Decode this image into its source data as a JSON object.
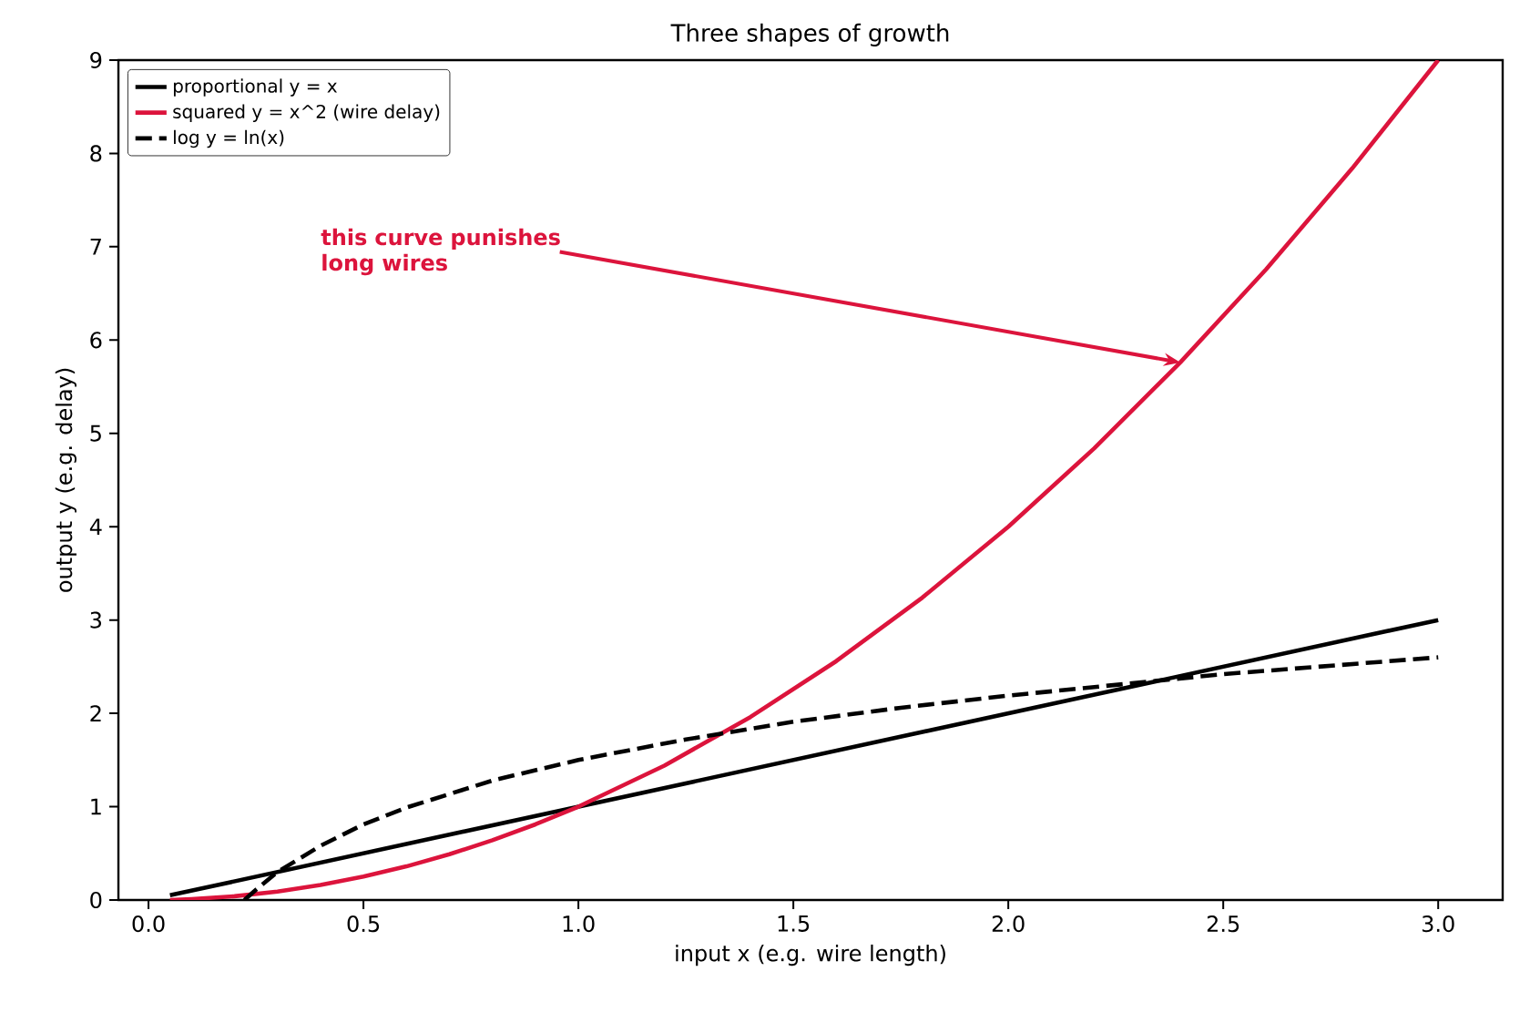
{
  "chart_data": {
    "type": "line",
    "title": "Three shapes of growth",
    "xlabel": "input  x  (e.g. wire length)",
    "ylabel": "output  y  (e.g. delay)",
    "xlim": [
      -0.07,
      3.15
    ],
    "ylim": [
      0,
      9
    ],
    "xticks": [
      {
        "value": 0.0,
        "label": "0.0"
      },
      {
        "value": 0.5,
        "label": "0.5"
      },
      {
        "value": 1.0,
        "label": "1.0"
      },
      {
        "value": 1.5,
        "label": "1.5"
      },
      {
        "value": 2.0,
        "label": "2.0"
      },
      {
        "value": 2.5,
        "label": "2.5"
      },
      {
        "value": 3.0,
        "label": "3.0"
      }
    ],
    "yticks": [
      0,
      1,
      2,
      3,
      4,
      5,
      6,
      7,
      8,
      9
    ],
    "grid": false,
    "legend": "top left",
    "marker": "none",
    "series": [
      {
        "name": "proportional  y = x",
        "color": "#000000",
        "line_style": "solid",
        "x": [
          0.05,
          3.0
        ],
        "values": [
          0.05,
          3.0
        ]
      },
      {
        "name": "squared  y = x^2  (wire delay)",
        "color": "#dc143c",
        "line_style": "solid",
        "x": [
          0.05,
          0.1,
          0.2,
          0.3,
          0.4,
          0.5,
          0.6,
          0.7,
          0.8,
          0.9,
          1.0,
          1.2,
          1.4,
          1.6,
          1.8,
          2.0,
          2.2,
          2.4,
          2.6,
          2.8,
          3.0
        ],
        "values": [
          0.0,
          0.01,
          0.04,
          0.09,
          0.16,
          0.25,
          0.36,
          0.49,
          0.64,
          0.81,
          1.0,
          1.44,
          1.96,
          2.56,
          3.24,
          4.0,
          4.84,
          5.76,
          6.76,
          7.84,
          9.0
        ]
      },
      {
        "name": "log  y = ln(x)",
        "color": "#000000",
        "line_style": "dashed",
        "x": [
          0.223,
          0.25,
          0.3,
          0.4,
          0.5,
          0.6,
          0.8,
          1.0,
          1.25,
          1.5,
          1.75,
          2.0,
          2.5,
          3.0
        ],
        "values": [
          0.0,
          0.11,
          0.3,
          0.58,
          0.81,
          0.99,
          1.28,
          1.5,
          1.72,
          1.91,
          2.06,
          2.19,
          2.42,
          2.6
        ]
      }
    ],
    "annotations": [
      {
        "text": "this curve punishes long wires",
        "x": 2.4,
        "y": 5.76
      }
    ]
  }
}
